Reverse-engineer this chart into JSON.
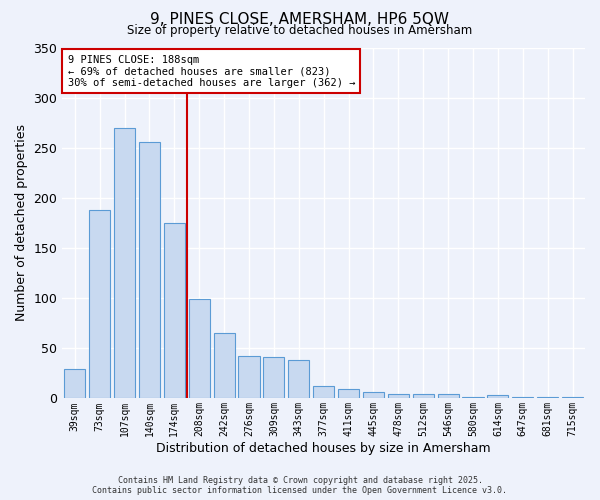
{
  "title": "9, PINES CLOSE, AMERSHAM, HP6 5QW",
  "subtitle": "Size of property relative to detached houses in Amersham",
  "xlabel": "Distribution of detached houses by size in Amersham",
  "ylabel": "Number of detached properties",
  "bar_color": "#c8d9f0",
  "bar_edge_color": "#5b9bd5",
  "background_color": "#eef2fb",
  "grid_color": "#ffffff",
  "categories": [
    "39sqm",
    "73sqm",
    "107sqm",
    "140sqm",
    "174sqm",
    "208sqm",
    "242sqm",
    "276sqm",
    "309sqm",
    "343sqm",
    "377sqm",
    "411sqm",
    "445sqm",
    "478sqm",
    "512sqm",
    "546sqm",
    "580sqm",
    "614sqm",
    "647sqm",
    "681sqm",
    "715sqm"
  ],
  "values": [
    29,
    188,
    270,
    256,
    175,
    99,
    65,
    42,
    41,
    38,
    12,
    9,
    6,
    4,
    4,
    4,
    1,
    3,
    1,
    1,
    1
  ],
  "ylim": [
    0,
    350
  ],
  "yticks": [
    0,
    50,
    100,
    150,
    200,
    250,
    300,
    350
  ],
  "vline_x": 4.5,
  "vline_color": "#cc0000",
  "annotation_title": "9 PINES CLOSE: 188sqm",
  "annotation_line1": "← 69% of detached houses are smaller (823)",
  "annotation_line2": "30% of semi-detached houses are larger (362) →",
  "annotation_box_color": "#ffffff",
  "annotation_box_edge": "#cc0000",
  "footer1": "Contains HM Land Registry data © Crown copyright and database right 2025.",
  "footer2": "Contains public sector information licensed under the Open Government Licence v3.0."
}
